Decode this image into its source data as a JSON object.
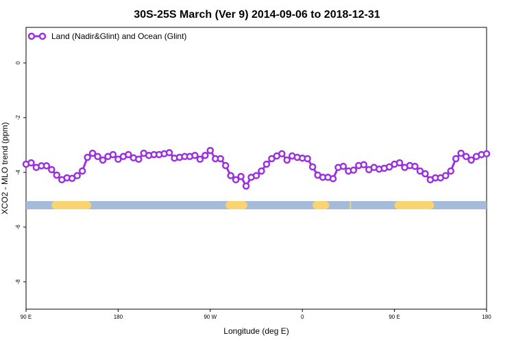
{
  "chart_data": {
    "type": "line",
    "title": "30S-25S March (Ver 9)   2014-09-06 to 2018-12-31",
    "xlabel": "Longitude (deg E)",
    "ylabel": "XCO2 - MLO trend (ppm)",
    "xlim": [
      90,
      450
    ],
    "ylim": [
      -9.0,
      1.3
    ],
    "x_ticks": [
      90,
      162,
      234,
      306,
      378,
      450
    ],
    "x_tick_labels": [
      "90 E",
      "180",
      "90 W",
      "0",
      "90 E",
      "180"
    ],
    "y_ticks": [
      -8,
      -6,
      -4,
      -2,
      0
    ],
    "y_tick_labels": [
      "-8",
      "-6",
      "-4",
      "-2",
      "0"
    ],
    "legend_position": "top-left",
    "colors": {
      "series": "#9b30e0",
      "ocean": "#a4bbd9",
      "land": "#fbd472"
    },
    "series": [
      {
        "name": "Land (Nadir&Glint) and Ocean (Glint)",
        "x": [
          90,
          94,
          98,
          102,
          106,
          110,
          114,
          118,
          122,
          126,
          130,
          134,
          138,
          142,
          146,
          150,
          154,
          158,
          162,
          166,
          170,
          174,
          178,
          182,
          186,
          190,
          194,
          198,
          202,
          206,
          210,
          214,
          218,
          222,
          226,
          230,
          234,
          238,
          242,
          246,
          250,
          254,
          258,
          262,
          266,
          270,
          274,
          278,
          282,
          286,
          290,
          294,
          298,
          302,
          306,
          310,
          314,
          318,
          322,
          326,
          330,
          334,
          338,
          342,
          346,
          350,
          354,
          358,
          362,
          366,
          370,
          374,
          378,
          382,
          386,
          390,
          394,
          398,
          402,
          406,
          410,
          414,
          418,
          422,
          426,
          430,
          434,
          438,
          442,
          446,
          450
        ],
        "values": [
          -3.7,
          -3.65,
          -3.82,
          -3.76,
          -3.76,
          -3.9,
          -4.1,
          -4.27,
          -4.2,
          -4.22,
          -4.12,
          -3.95,
          -3.45,
          -3.3,
          -3.42,
          -3.55,
          -3.42,
          -3.35,
          -3.52,
          -3.42,
          -3.35,
          -3.47,
          -3.52,
          -3.3,
          -3.38,
          -3.35,
          -3.35,
          -3.32,
          -3.28,
          -3.48,
          -3.45,
          -3.42,
          -3.42,
          -3.38,
          -3.52,
          -3.38,
          -3.2,
          -3.5,
          -3.5,
          -3.75,
          -4.12,
          -4.27,
          -4.15,
          -4.5,
          -4.18,
          -4.12,
          -3.95,
          -3.7,
          -3.5,
          -3.4,
          -3.32,
          -3.55,
          -3.4,
          -3.45,
          -3.48,
          -3.5,
          -3.8,
          -4.1,
          -4.18,
          -4.18,
          -4.23,
          -3.82,
          -3.78,
          -3.95,
          -3.92,
          -3.75,
          -3.72,
          -3.9,
          -3.82,
          -3.88,
          -3.85,
          -3.8,
          -3.7,
          -3.65,
          -3.82,
          -3.75,
          -3.78,
          -3.95,
          -4.05,
          -4.27,
          -4.2,
          -4.2,
          -4.12,
          -3.95,
          -3.5,
          -3.3,
          -3.42,
          -3.55,
          -3.42,
          -3.35,
          -3.32
        ]
      }
    ],
    "surface_band": {
      "y": -5.2,
      "land_ranges": [
        [
          110,
          141
        ],
        [
          246,
          263
        ],
        [
          314,
          327
        ],
        [
          343,
          344
        ],
        [
          378,
          409
        ]
      ]
    }
  }
}
